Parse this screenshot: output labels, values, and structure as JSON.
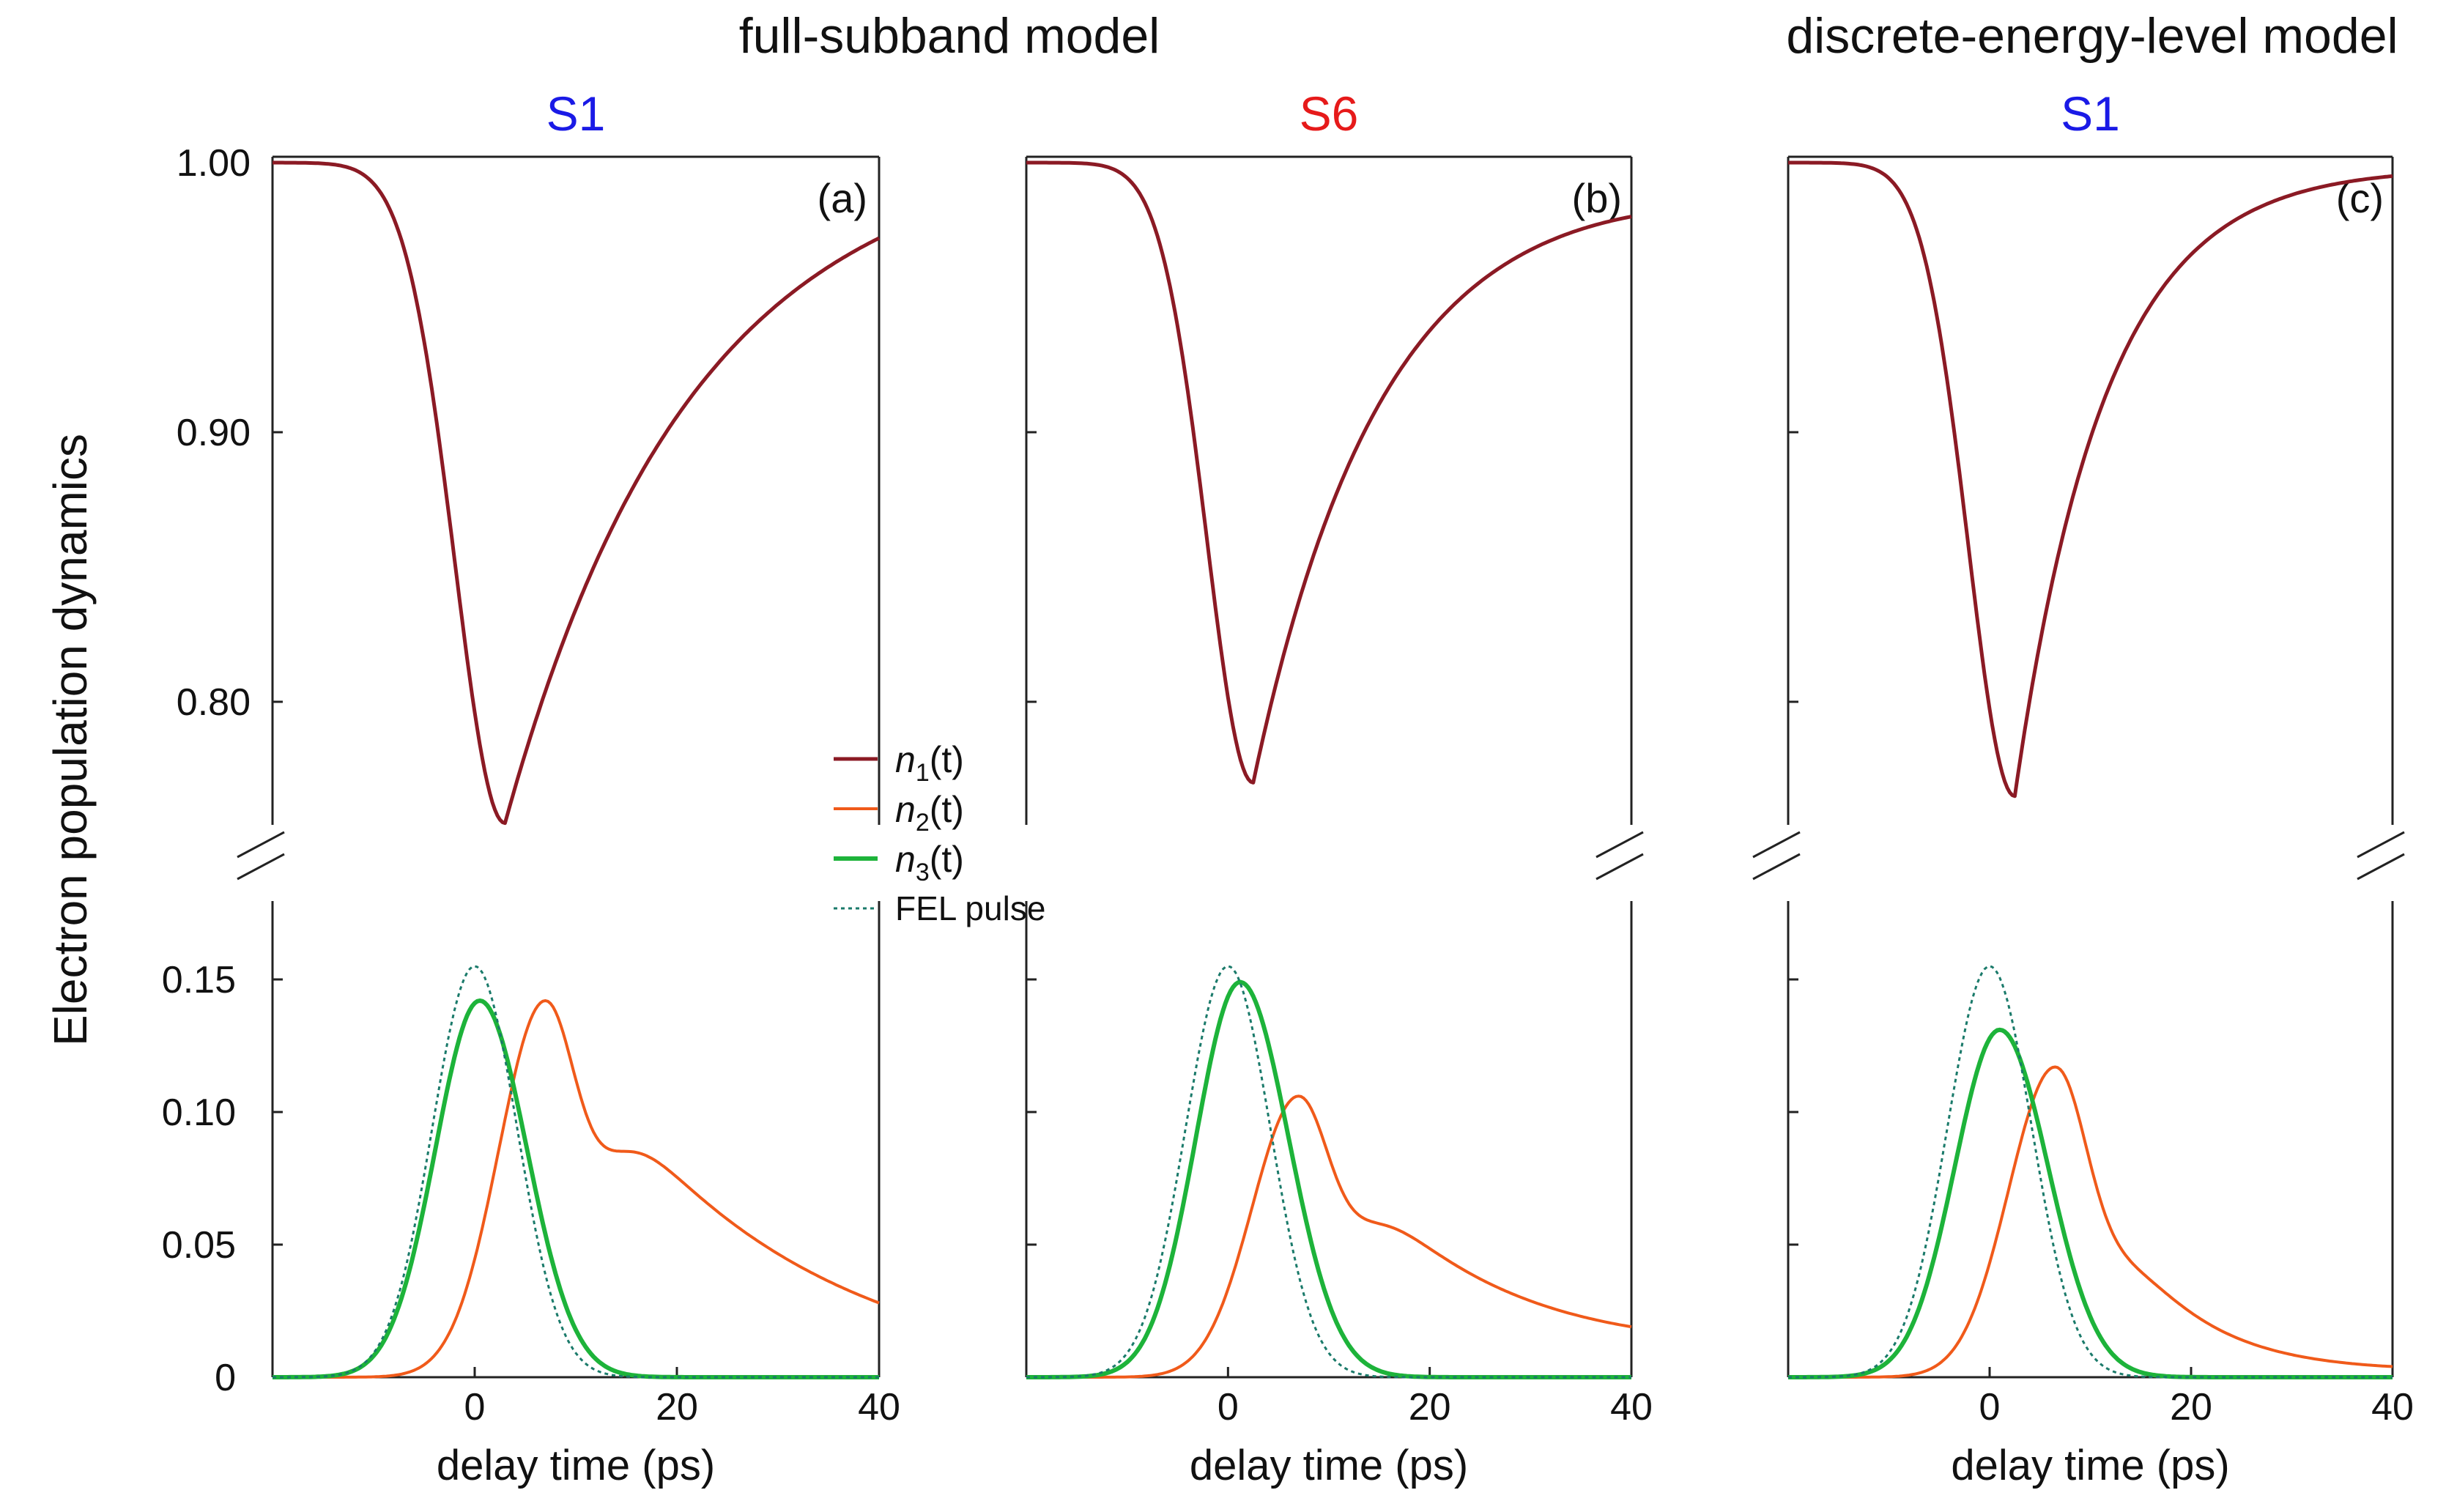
{
  "model_titles": {
    "full_subband": "full-subband model",
    "discrete": "discrete-energy-level model"
  },
  "ylabel": "Electron population dynamics",
  "xlabel": "delay time (ps)",
  "colors": {
    "n1": "#8b1a24",
    "n2": "#f05a1a",
    "n3": "#1db33a",
    "fel": "#1a7a6a",
    "s1": "#1a1ae6",
    "s6": "#e61a1a"
  },
  "legend": {
    "n1": {
      "var": "n",
      "sub": "1",
      "arg": "(t)"
    },
    "n2": {
      "var": "n",
      "sub": "2",
      "arg": "(t)"
    },
    "n3": {
      "var": "n",
      "sub": "3",
      "arg": "(t)"
    },
    "fel": "FEL pulse"
  },
  "chart_data": [
    {
      "type": "line",
      "panel": "(a)",
      "title": "S1",
      "model": "full-subband model",
      "x_ticks": [
        0,
        20,
        40
      ],
      "x_range": [
        -20,
        40
      ],
      "upper_y_range": [
        0.75,
        1.0
      ],
      "upper_y_ticks": [
        "1.00",
        "0.90",
        "0.80"
      ],
      "lower_y_range": [
        0,
        0.18
      ],
      "lower_y_ticks": [
        "0.15",
        "0.10",
        "0.05",
        "0"
      ],
      "series": [
        {
          "name": "n1(t)",
          "key": "n1",
          "axis": "upper",
          "min_value": 0.755,
          "min_time": 3,
          "fall_width": 7,
          "recovery_tau": 18,
          "final_value": 0.972
        },
        {
          "name": "n2(t)",
          "key": "n2",
          "axis": "lower",
          "peak_value": 0.142,
          "peak_time": 7,
          "rise_width": 6.5,
          "decay_tau": 21,
          "final_value": 0.028
        },
        {
          "name": "n3(t)",
          "key": "n3",
          "axis": "lower",
          "peak_value": 0.142,
          "peak_time": 0.5,
          "rise_width": 6.2,
          "fall_width": 6.6
        },
        {
          "name": "FEL pulse",
          "key": "fel",
          "axis": "lower",
          "peak_value": 0.155,
          "peak_time": 0,
          "sigma": 4.2
        }
      ]
    },
    {
      "type": "line",
      "panel": "(b)",
      "title": "S6",
      "model": "full-subband model",
      "x_ticks": [
        0,
        20,
        40
      ],
      "x_range": [
        -20,
        40
      ],
      "upper_y_range": [
        0.75,
        1.0
      ],
      "upper_y_ticks": [],
      "lower_y_range": [
        0,
        0.18
      ],
      "lower_y_ticks": [],
      "series": [
        {
          "name": "n1(t)",
          "key": "n1",
          "axis": "upper",
          "min_value": 0.77,
          "min_time": 2.5,
          "fall_width": 6.5,
          "recovery_tau": 13,
          "final_value": 0.98
        },
        {
          "name": "n2(t)",
          "key": "n2",
          "axis": "lower",
          "peak_value": 0.106,
          "peak_time": 7,
          "rise_width": 6.5,
          "decay_tau": 16,
          "final_value": 0.019
        },
        {
          "name": "n3(t)",
          "key": "n3",
          "axis": "lower",
          "peak_value": 0.149,
          "peak_time": 1.2,
          "rise_width": 6.2,
          "fall_width": 6.8
        },
        {
          "name": "FEL pulse",
          "key": "fel",
          "axis": "lower",
          "peak_value": 0.155,
          "peak_time": 0,
          "sigma": 4.2
        }
      ]
    },
    {
      "type": "line",
      "panel": "(c)",
      "title": "S1",
      "model": "discrete-energy-level model",
      "x_ticks": [
        0,
        20,
        40
      ],
      "x_range": [
        -20,
        40
      ],
      "upper_y_range": [
        0.75,
        1.0
      ],
      "upper_y_ticks": [],
      "lower_y_range": [
        0,
        0.18
      ],
      "lower_y_ticks": [],
      "series": [
        {
          "name": "n1(t)",
          "key": "n1",
          "axis": "upper",
          "min_value": 0.765,
          "min_time": 2.5,
          "fall_width": 6.5,
          "recovery_tau": 9,
          "final_value": 0.995
        },
        {
          "name": "n2(t)",
          "key": "n2",
          "axis": "lower",
          "peak_value": 0.117,
          "peak_time": 6.5,
          "rise_width": 6.5,
          "decay_tau": 8.5,
          "final_value": 0.004
        },
        {
          "name": "n3(t)",
          "key": "n3",
          "axis": "lower",
          "peak_value": 0.131,
          "peak_time": 1,
          "rise_width": 6.3,
          "fall_width": 6.8
        },
        {
          "name": "FEL pulse",
          "key": "fel",
          "axis": "lower",
          "peak_value": 0.155,
          "peak_time": 0,
          "sigma": 4.2
        }
      ]
    }
  ]
}
